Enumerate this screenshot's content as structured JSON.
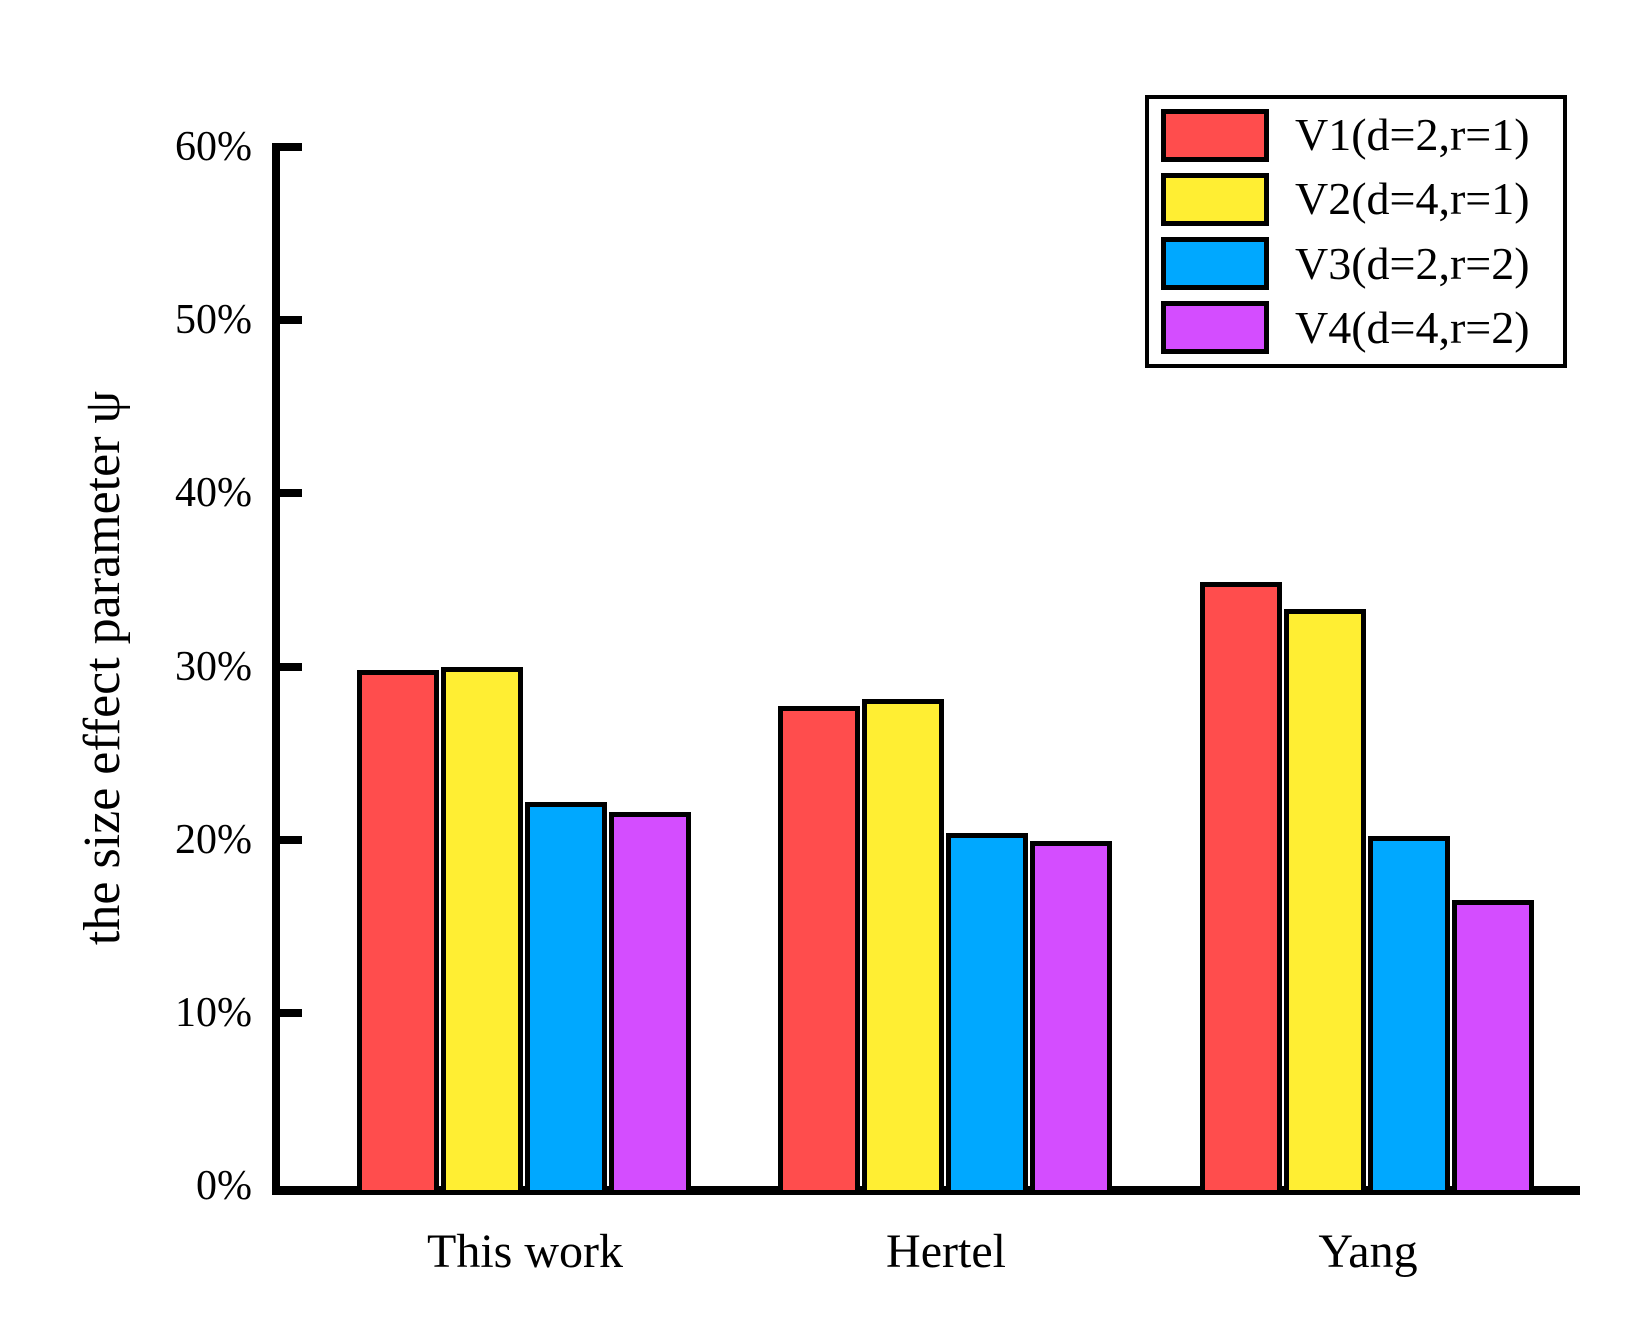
{
  "chart_data": {
    "type": "bar",
    "title": "",
    "xlabel": "",
    "ylabel": "the size effect parameter ψ",
    "ylim": [
      0,
      60
    ],
    "grid": false,
    "legend_position": "top-right",
    "categories": [
      "This work",
      "Hertel",
      "Yang"
    ],
    "series": [
      {
        "name": "V1(d=2,r=1)",
        "color": "#FF4D4D",
        "values": [
          29.8,
          27.7,
          34.9
        ]
      },
      {
        "name": "V2(d=4,r=1)",
        "color": "#FFEE33",
        "values": [
          30.0,
          28.1,
          33.3
        ]
      },
      {
        "name": "V3(d=2,r=2)",
        "color": "#00A8FF",
        "values": [
          22.2,
          20.4,
          20.2
        ]
      },
      {
        "name": "V4(d=4,r=2)",
        "color": "#D44DFF",
        "values": [
          21.6,
          19.9,
          16.5
        ]
      }
    ],
    "y_ticks": [
      {
        "value": 0,
        "label": "0%"
      },
      {
        "value": 10,
        "label": "10%"
      },
      {
        "value": 20,
        "label": "20%"
      },
      {
        "value": 30,
        "label": "30%"
      },
      {
        "value": 40,
        "label": "40%"
      },
      {
        "value": 50,
        "label": "50%"
      },
      {
        "value": 60,
        "label": "60%"
      }
    ]
  }
}
